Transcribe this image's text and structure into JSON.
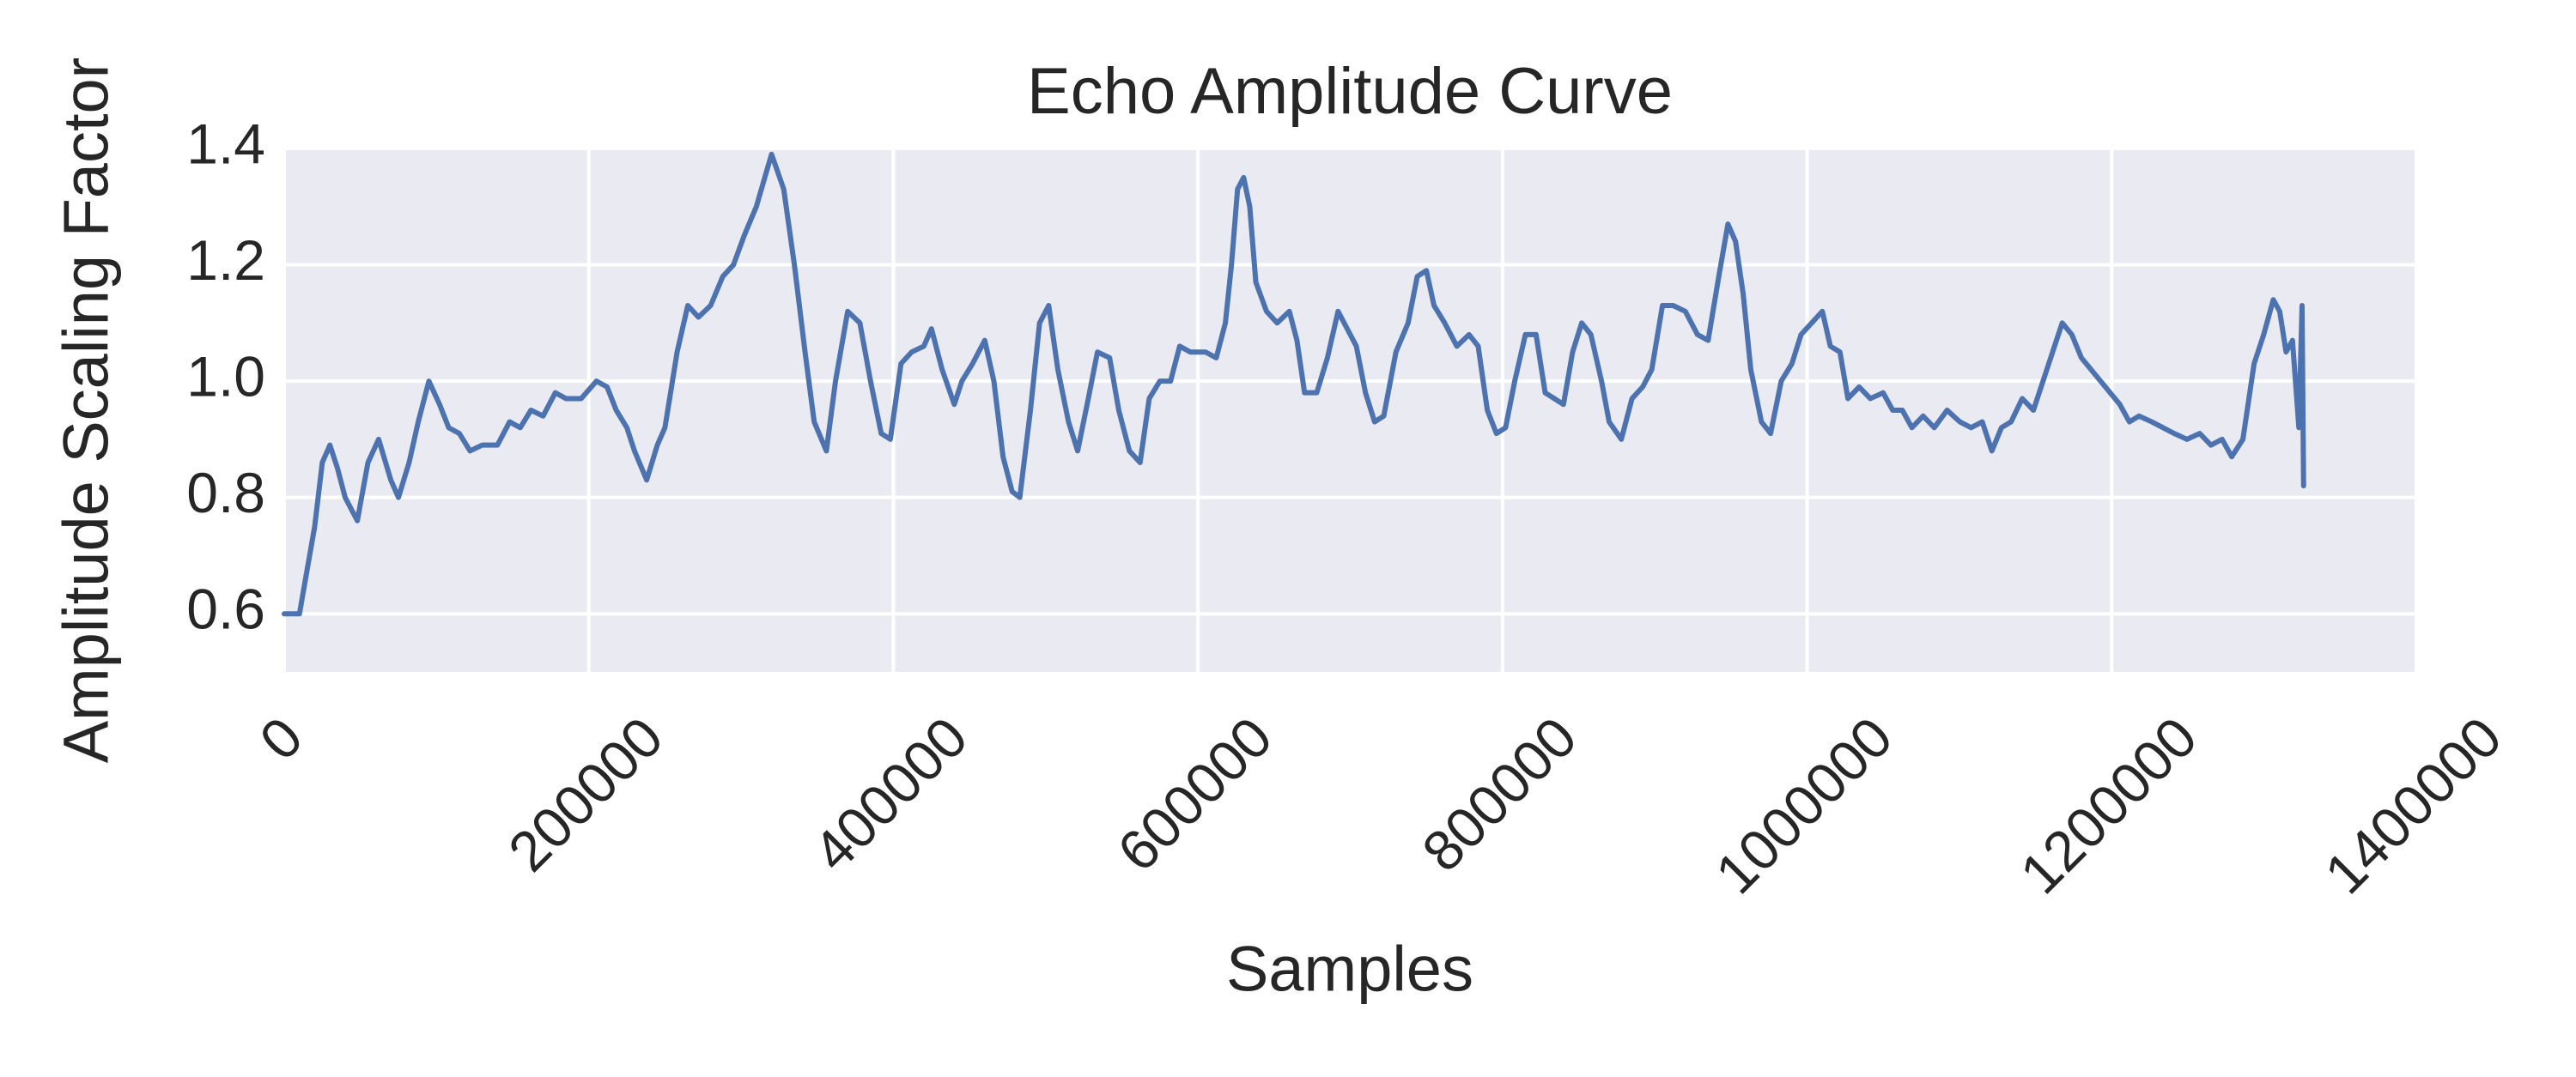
{
  "chart_data": {
    "type": "line",
    "title": "Echo Amplitude Curve",
    "xlabel": "Samples",
    "ylabel": "Amplitude Scaling Factor",
    "color": "#4c72b0",
    "grid": true,
    "xlim": [
      0,
      1400000
    ],
    "xticks": [
      0,
      200000,
      400000,
      600000,
      800000,
      1000000,
      1200000,
      1400000
    ],
    "ylim": [
      0.5,
      1.4
    ],
    "yticks": [
      0.6,
      0.8,
      {
        "value": 1,
        "label": "1.0"
      },
      1.2,
      1.4
    ],
    "x": [
      0,
      10000,
      20000,
      25000,
      30000,
      35000,
      40000,
      48000,
      55000,
      62000,
      70000,
      75000,
      82000,
      88000,
      95000,
      102000,
      108000,
      115000,
      122000,
      130000,
      140000,
      148000,
      155000,
      162000,
      170000,
      178000,
      185000,
      195000,
      205000,
      212000,
      218000,
      225000,
      230000,
      238000,
      245000,
      250000,
      258000,
      265000,
      272000,
      280000,
      288000,
      295000,
      302000,
      310000,
      320000,
      328000,
      335000,
      342000,
      348000,
      356000,
      362000,
      370000,
      378000,
      385000,
      392000,
      398000,
      405000,
      412000,
      420000,
      425000,
      432000,
      440000,
      445000,
      452000,
      460000,
      466000,
      472000,
      478000,
      483000,
      490000,
      496000,
      502000,
      508000,
      515000,
      521000,
      528000,
      534000,
      542000,
      548000,
      555000,
      562000,
      568000,
      575000,
      582000,
      588000,
      595000,
      605000,
      612000,
      618000,
      622000,
      626000,
      630000,
      634000,
      638000,
      645000,
      652000,
      660000,
      665000,
      670000,
      678000,
      685000,
      692000,
      698000,
      704000,
      710000,
      716000,
      722000,
      730000,
      738000,
      744000,
      750000,
      755000,
      762000,
      770000,
      778000,
      784000,
      790000,
      796000,
      802000,
      808000,
      815000,
      822000,
      828000,
      834000,
      840000,
      846000,
      852000,
      858000,
      865000,
      870000,
      878000,
      885000,
      892000,
      898000,
      905000,
      912000,
      920000,
      928000,
      935000,
      942000,
      948000,
      953000,
      958000,
      963000,
      970000,
      976000,
      983000,
      990000,
      996000,
      1010000,
      1015250,
      1021550,
      1026800,
      1034150,
      1041500,
      1049900,
      1056200,
      1062500,
      1068800,
      1076150,
      1083500,
      1091900,
      1100300,
      1107650,
      1115000,
      1121300,
      1127600,
      1133900,
      1141250,
      1148600,
      1154900,
      1161200,
      1167500,
      1173800,
      1180100,
      1186400,
      1192700,
      1199000,
      1205300,
      1211600,
      1217900,
      1226300,
      1233650,
      1241000,
      1249400,
      1257800,
      1265150,
      1272500,
      1278800,
      1286150,
      1293500,
      1299800,
      1306100,
      1310300,
      1314500,
      1318700,
      1322900,
      1325000,
      1326000
    ],
    "values": [
      0.6,
      0.6,
      0.75,
      0.86,
      0.89,
      0.85,
      0.8,
      0.76,
      0.86,
      0.9,
      0.83,
      0.8,
      0.86,
      0.93,
      1.0,
      0.96,
      0.92,
      0.91,
      0.88,
      0.89,
      0.89,
      0.93,
      0.92,
      0.95,
      0.94,
      0.98,
      0.97,
      0.97,
      1.0,
      0.99,
      0.95,
      0.92,
      0.88,
      0.83,
      0.89,
      0.92,
      1.05,
      1.13,
      1.11,
      1.13,
      1.18,
      1.2,
      1.25,
      1.3,
      1.39,
      1.33,
      1.2,
      1.05,
      0.93,
      0.88,
      1.0,
      1.12,
      1.1,
      1.0,
      0.91,
      0.9,
      1.03,
      1.05,
      1.06,
      1.09,
      1.02,
      0.96,
      1.0,
      1.03,
      1.07,
      1.0,
      0.87,
      0.81,
      0.8,
      0.95,
      1.1,
      1.13,
      1.02,
      0.93,
      0.88,
      0.97,
      1.05,
      1.04,
      0.95,
      0.88,
      0.86,
      0.97,
      1.0,
      1.0,
      1.06,
      1.05,
      1.05,
      1.04,
      1.1,
      1.2,
      1.33,
      1.35,
      1.3,
      1.17,
      1.12,
      1.1,
      1.12,
      1.07,
      0.98,
      0.98,
      1.04,
      1.12,
      1.09,
      1.06,
      0.98,
      0.93,
      0.94,
      1.05,
      1.1,
      1.18,
      1.19,
      1.13,
      1.1,
      1.06,
      1.08,
      1.06,
      0.95,
      0.91,
      0.92,
      1.0,
      1.08,
      1.08,
      0.98,
      0.97,
      0.96,
      1.05,
      1.1,
      1.08,
      1.0,
      0.93,
      0.9,
      0.97,
      0.99,
      1.02,
      1.13,
      1.13,
      1.12,
      1.08,
      1.07,
      1.18,
      1.27,
      1.24,
      1.15,
      1.02,
      0.93,
      0.91,
      1.0,
      1.03,
      1.08,
      1.12,
      1.06,
      1.05,
      0.97,
      0.99,
      0.97,
      0.98,
      0.95,
      0.95,
      0.92,
      0.94,
      0.92,
      0.95,
      0.93,
      0.92,
      0.93,
      0.88,
      0.92,
      0.93,
      0.97,
      0.95,
      1.0,
      1.05,
      1.1,
      1.08,
      1.04,
      1.02,
      1.0,
      0.98,
      0.96,
      0.93,
      0.94,
      0.93,
      0.92,
      0.91,
      0.9,
      0.91,
      0.89,
      0.9,
      0.87,
      0.9,
      1.03,
      1.08,
      1.14,
      1.12,
      1.05,
      1.07,
      0.92,
      1.13,
      0.82
    ]
  }
}
